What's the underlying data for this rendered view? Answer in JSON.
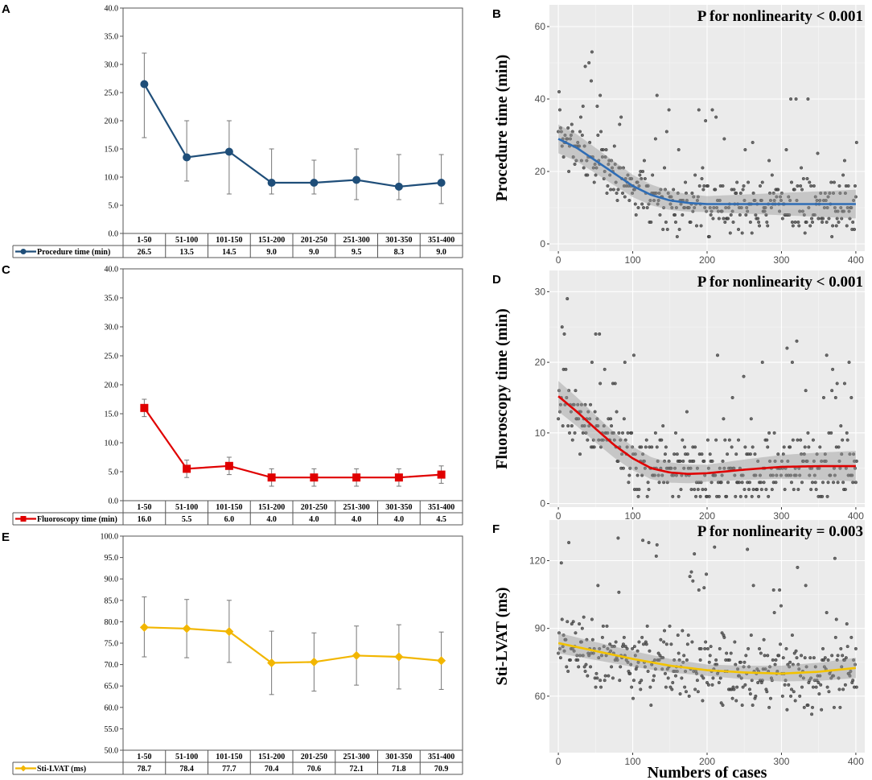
{
  "chart_data": [
    {
      "panel": "A",
      "type": "line",
      "series_name": "Procedure time (min)",
      "color": "#1f4e79",
      "marker": "circle",
      "categories": [
        "1-50",
        "51-100",
        "101-150",
        "151-200",
        "201-250",
        "251-300",
        "301-350",
        "351-400"
      ],
      "values": [
        26.5,
        13.5,
        14.5,
        9.0,
        9.0,
        9.5,
        8.3,
        9.0
      ],
      "table_values": [
        "26.5",
        "13.5",
        "14.5",
        "9.0",
        "9.0",
        "9.5",
        "8.3",
        "9.0"
      ],
      "err_low": [
        17,
        9.3,
        7,
        7,
        7,
        6,
        6,
        5.3
      ],
      "err_high": [
        32,
        20,
        20,
        15,
        13,
        15,
        14,
        14
      ],
      "ylim": [
        0,
        40
      ],
      "yticks": [
        "0.0",
        "5.0",
        "10.0",
        "15.0",
        "20.0",
        "25.0",
        "30.0",
        "35.0",
        "40.0"
      ]
    },
    {
      "panel": "C",
      "type": "line",
      "series_name": "Fluoroscopy time (min)",
      "color": "#e00000",
      "marker": "square",
      "categories": [
        "1-50",
        "51-100",
        "101-150",
        "151-200",
        "201-250",
        "251-300",
        "301-350",
        "351-400"
      ],
      "values": [
        16.0,
        5.5,
        6.0,
        4.0,
        4.0,
        4.0,
        4.0,
        4.5
      ],
      "table_values": [
        "16.0",
        "5.5",
        "6.0",
        "4.0",
        "4.0",
        "4.0",
        "4.0",
        "4.5"
      ],
      "err_low": [
        14.5,
        4.0,
        4.5,
        2.5,
        2.5,
        2.5,
        2.5,
        3.0
      ],
      "err_high": [
        17.5,
        7.0,
        7.5,
        5.5,
        5.5,
        5.5,
        5.5,
        6.0
      ],
      "ylim": [
        0,
        40
      ],
      "yticks": [
        "0.0",
        "5.0",
        "10.0",
        "15.0",
        "20.0",
        "25.0",
        "30.0",
        "35.0",
        "40.0"
      ]
    },
    {
      "panel": "E",
      "type": "line",
      "series_name": "Sti-LVAT (ms)",
      "color": "#f2b600",
      "marker": "diamond",
      "categories": [
        "1-50",
        "51-100",
        "101-150",
        "151-200",
        "201-250",
        "251-300",
        "301-350",
        "351-400"
      ],
      "values": [
        78.7,
        78.4,
        77.7,
        70.4,
        70.6,
        72.1,
        71.8,
        70.9
      ],
      "table_values": [
        "78.7",
        "78.4",
        "77.7",
        "70.4",
        "70.6",
        "72.1",
        "71.8",
        "70.9"
      ],
      "err_low": [
        71.8,
        71.6,
        70.5,
        63.0,
        63.8,
        65.2,
        64.3,
        64.2
      ],
      "err_high": [
        85.8,
        85.2,
        85.0,
        77.8,
        77.4,
        79.0,
        79.3,
        77.6
      ],
      "ylim": [
        50,
        100
      ],
      "yticks": [
        "50.0",
        "55.0",
        "60.0",
        "65.0",
        "70.0",
        "75.0",
        "80.0",
        "85.0",
        "90.0",
        "95.0",
        "100.0"
      ]
    },
    {
      "panel": "B",
      "type": "scatter",
      "ylabel": "Procedure time (min)",
      "xlabel": "",
      "annotation": "P for nonlinearity < 0.001",
      "line_color": "#2f6db5",
      "xlim": [
        -12,
        412
      ],
      "ylim": [
        -2,
        66
      ],
      "xticks": [
        0,
        100,
        200,
        300,
        400
      ],
      "yticks": [
        0,
        20,
        40,
        60
      ],
      "xtick_labels": [
        "0",
        "100",
        "200",
        "300",
        "400"
      ],
      "ytick_labels": [
        "0",
        "20",
        "40",
        "60"
      ],
      "smooth": [
        [
          0,
          29
        ],
        [
          25,
          26.5
        ],
        [
          50,
          23
        ],
        [
          75,
          19.5
        ],
        [
          100,
          16
        ],
        [
          125,
          13.5
        ],
        [
          150,
          12
        ],
        [
          175,
          11.3
        ],
        [
          200,
          11
        ],
        [
          300,
          11
        ],
        [
          400,
          11
        ]
      ],
      "band": 2.2,
      "scatter_seed": 7,
      "scatter_n": 400,
      "scatter_spread": 6,
      "scatter_floor": 2,
      "scatter_step": 1
    },
    {
      "panel": "D",
      "type": "scatter",
      "ylabel": "Fluoroscopy time (min)",
      "xlabel": "",
      "annotation": "P for nonlinearity < 0.001",
      "line_color": "#e00000",
      "xlim": [
        -12,
        412
      ],
      "ylim": [
        -0.5,
        33
      ],
      "xticks": [
        0,
        100,
        200,
        300,
        400
      ],
      "yticks": [
        0,
        10,
        20,
        30
      ],
      "xtick_labels": [
        "0",
        "100",
        "200",
        "300",
        "400"
      ],
      "ytick_labels": [
        "0",
        "10",
        "20",
        "30"
      ],
      "smooth": [
        [
          0,
          15.2
        ],
        [
          25,
          13
        ],
        [
          50,
          10.6
        ],
        [
          75,
          8.3
        ],
        [
          100,
          6.4
        ],
        [
          125,
          5
        ],
        [
          150,
          4.4
        ],
        [
          175,
          4.2
        ],
        [
          200,
          4.3
        ],
        [
          250,
          4.8
        ],
        [
          300,
          5.2
        ],
        [
          350,
          5.3
        ],
        [
          400,
          5.3
        ]
      ],
      "band": 1.2,
      "scatter_seed": 11,
      "scatter_n": 400,
      "scatter_spread": 3.5,
      "scatter_floor": 1,
      "scatter_step": 1
    },
    {
      "panel": "F",
      "type": "scatter",
      "ylabel": "Sti-LVAT (ms)",
      "xlabel": "Numbers of cases",
      "annotation": "P for nonlinearity = 0.003",
      "line_color": "#f2c200",
      "xlim": [
        -12,
        412
      ],
      "ylim": [
        35,
        138
      ],
      "xticks": [
        0,
        100,
        200,
        300,
        400
      ],
      "yticks": [
        60,
        90,
        120
      ],
      "xtick_labels": [
        "0",
        "100",
        "200",
        "300",
        "400"
      ],
      "ytick_labels": [
        "60",
        "90",
        "120"
      ],
      "smooth": [
        [
          0,
          83.5
        ],
        [
          50,
          80
        ],
        [
          100,
          76.5
        ],
        [
          150,
          73.5
        ],
        [
          200,
          71.5
        ],
        [
          250,
          70.5
        ],
        [
          300,
          70
        ],
        [
          350,
          70.8
        ],
        [
          400,
          72.5
        ]
      ],
      "band": 2.5,
      "scatter_seed": 23,
      "scatter_n": 400,
      "scatter_spread": 11,
      "scatter_floor": 40,
      "scatter_step": 1
    }
  ]
}
